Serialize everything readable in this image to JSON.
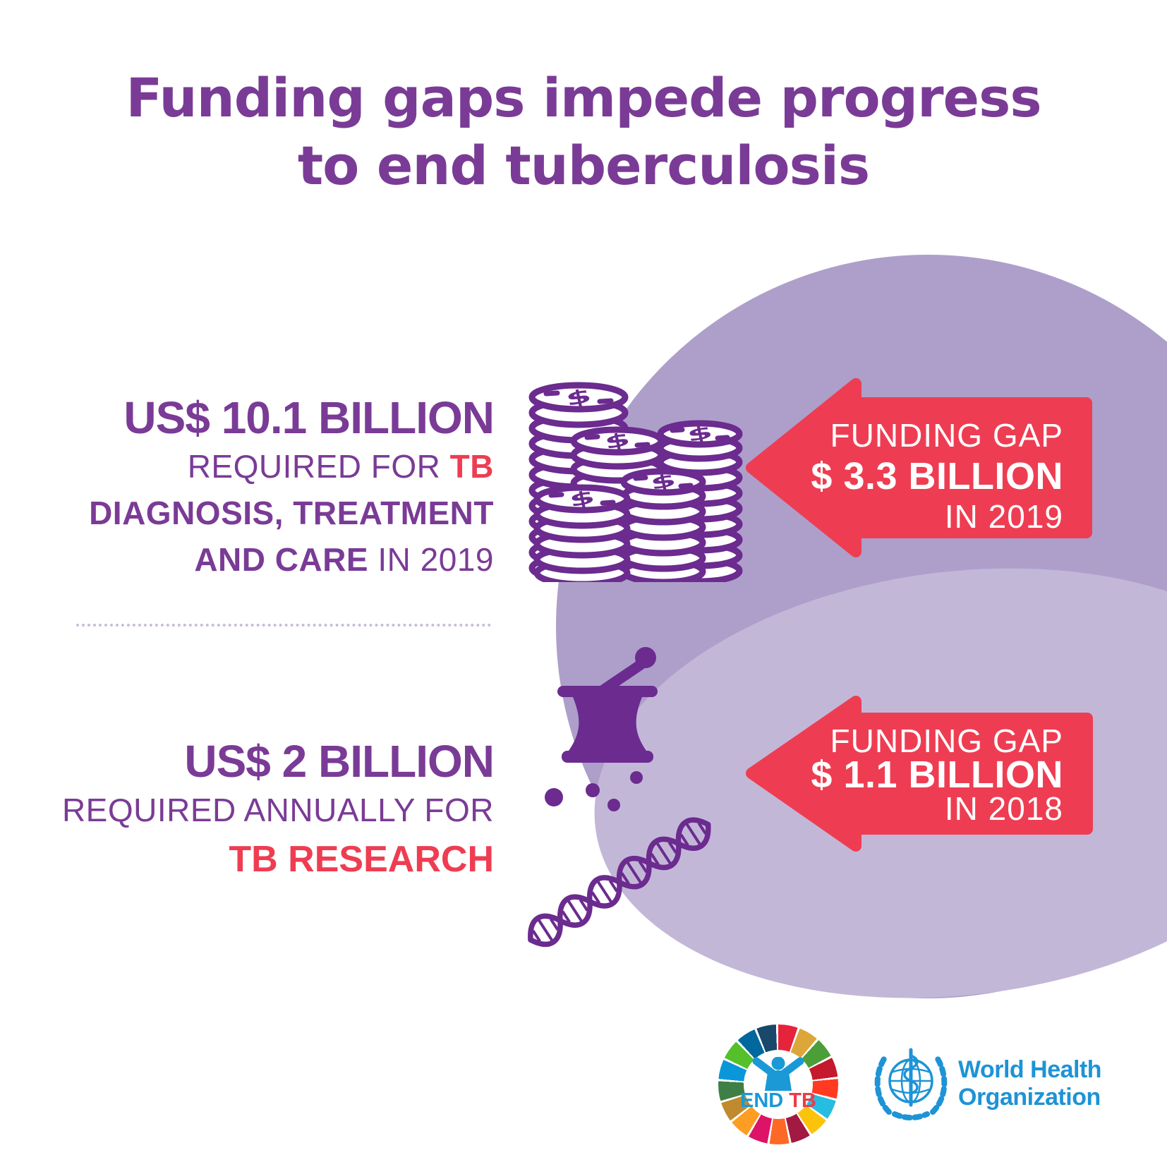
{
  "title": {
    "line1": "Funding gaps impede progress",
    "line2": "to end tuberculosis"
  },
  "treatment": {
    "amount": "US$ 10.1 BILLION",
    "required_prefix": "REQUIRED FOR ",
    "required_highlight": "TB",
    "line3": "DIAGNOSIS, TREATMENT",
    "line4_bold": "AND CARE",
    "line4_rest": " IN 2019",
    "funding_gap": {
      "label": "FUNDING GAP",
      "amount": "$ 3.3 BILLION",
      "period": "IN 2019"
    }
  },
  "research": {
    "amount": "US$ 2 BILLION",
    "required_line": "REQUIRED ANNUALLY FOR",
    "highlight_line": "TB RESEARCH",
    "funding_gap": {
      "label": "FUNDING GAP",
      "amount": "$ 1.1 BILLION",
      "period": "IN 2018"
    }
  },
  "footer": {
    "endtb": {
      "end_label": "END",
      "tb_label": "TB"
    },
    "who": {
      "name_line1": "World Health",
      "name_line2": "Organization"
    }
  },
  "icons": {
    "coins": "coin-stacks-icon",
    "mortar": "mortar-and-pestle-icon",
    "dna": "dna-helix-icon",
    "endtb_person": "person-arms-raised-icon",
    "who_emblem": "who-un-emblem-icon"
  },
  "colors": {
    "red": "#ee3d52",
    "purple_text": "#7a3b96",
    "purple_icon": "#6b2b8f",
    "circle_dark": "#ad9fca",
    "circle_light": "#c3b7d8",
    "who_blue": "#1e93d6",
    "endtb_blue": "#1a99d6",
    "endtb_red": "#ed3b49",
    "divider": "#c9bcd8",
    "sdg_wheel": [
      "#e5243b",
      "#dda63a",
      "#4c9f38",
      "#c5192d",
      "#ff3a21",
      "#26bde2",
      "#fcc30b",
      "#a21942",
      "#fd6925",
      "#dd1367",
      "#fd9d24",
      "#bf8b2e",
      "#3f7e44",
      "#0a97d9",
      "#56c02b",
      "#00689d",
      "#19486a"
    ]
  }
}
